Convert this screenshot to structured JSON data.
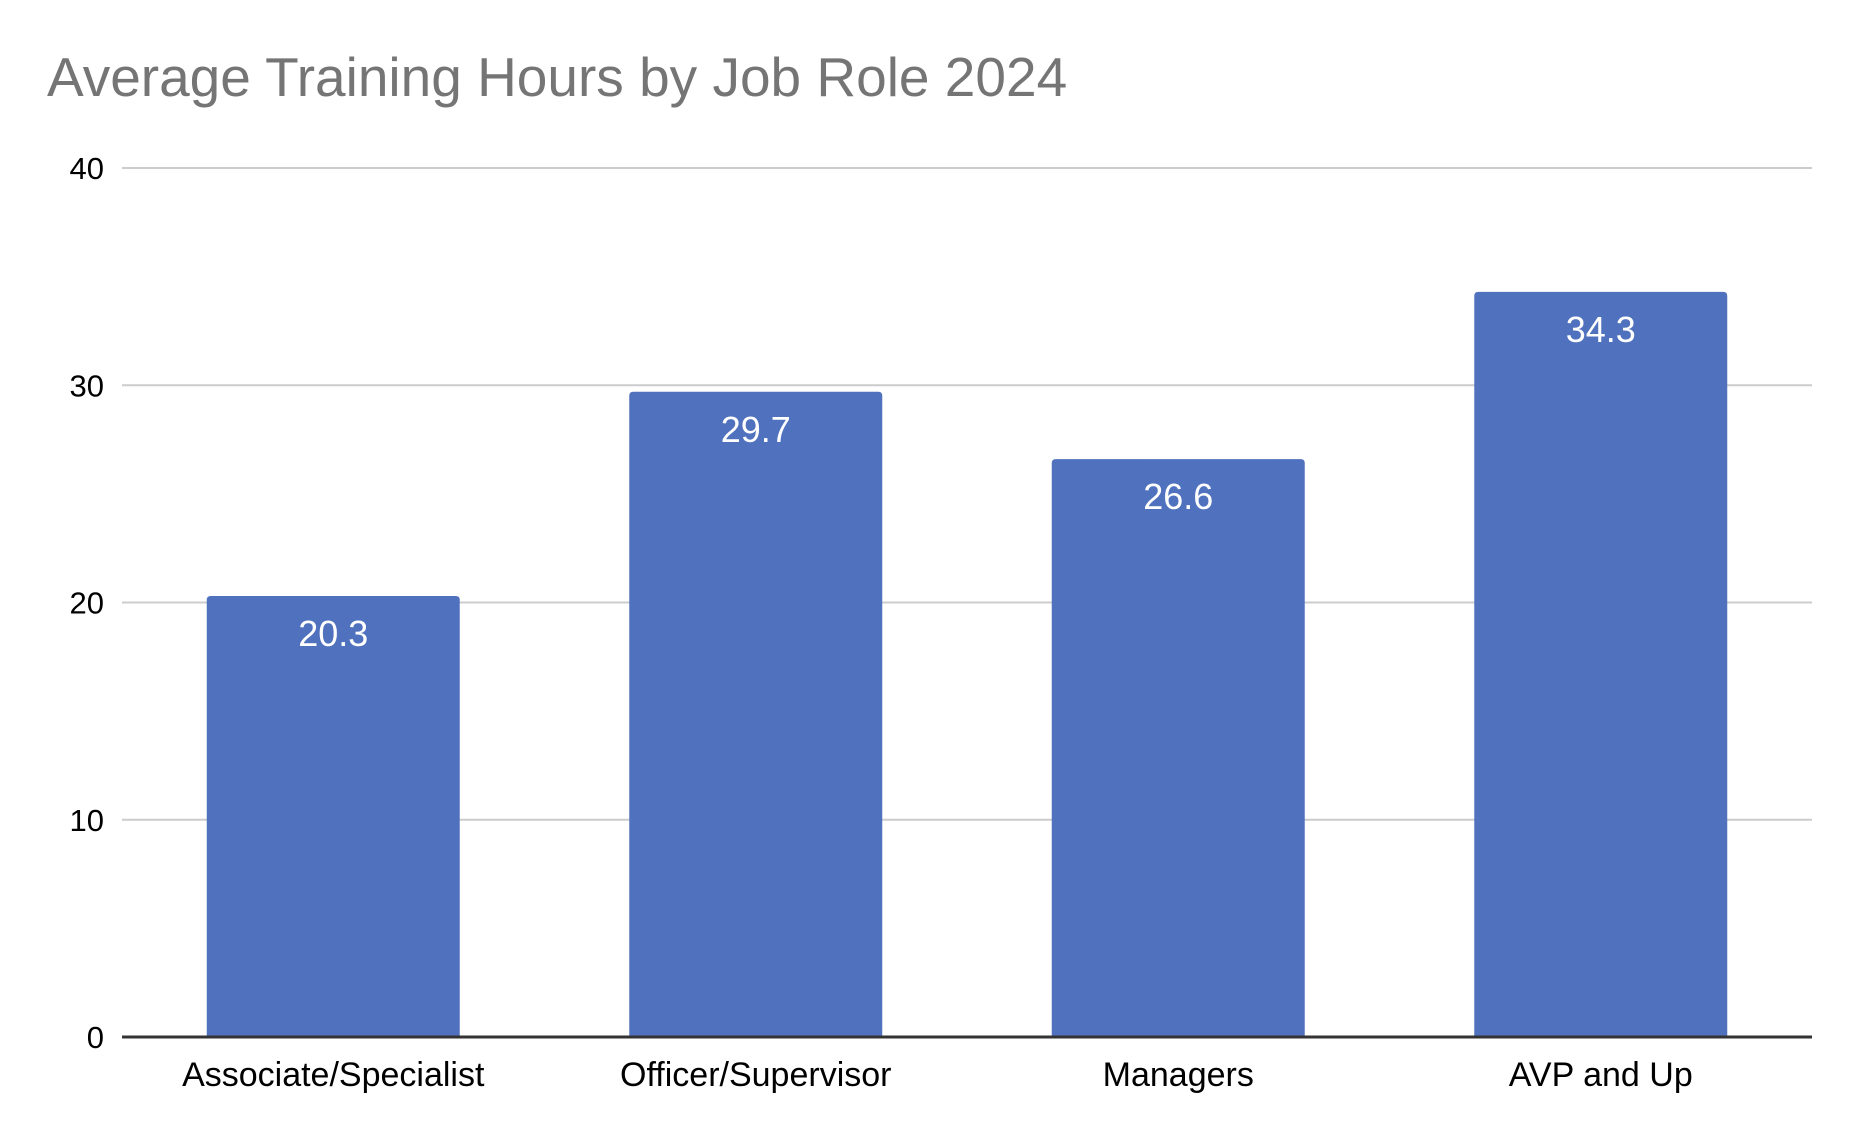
{
  "chart_data": {
    "type": "bar",
    "title": "Average Training Hours by Job Role 2024",
    "xlabel": "",
    "ylabel": "",
    "categories": [
      "Associate/Specialist",
      "Officer/Supervisor",
      "Managers",
      "AVP and Up"
    ],
    "series": [
      {
        "values": [
          20.3,
          29.7,
          26.6,
          34.3
        ],
        "color": "#5072be"
      }
    ],
    "data_labels": [
      "20.3",
      "29.7",
      "26.6",
      "34.3"
    ],
    "ylim": [
      0,
      40
    ],
    "yticks": [
      0,
      10,
      20,
      30,
      40
    ],
    "ytick_labels": [
      "0",
      "10",
      "20",
      "30",
      "40"
    ],
    "grid": true,
    "legend": "none"
  }
}
